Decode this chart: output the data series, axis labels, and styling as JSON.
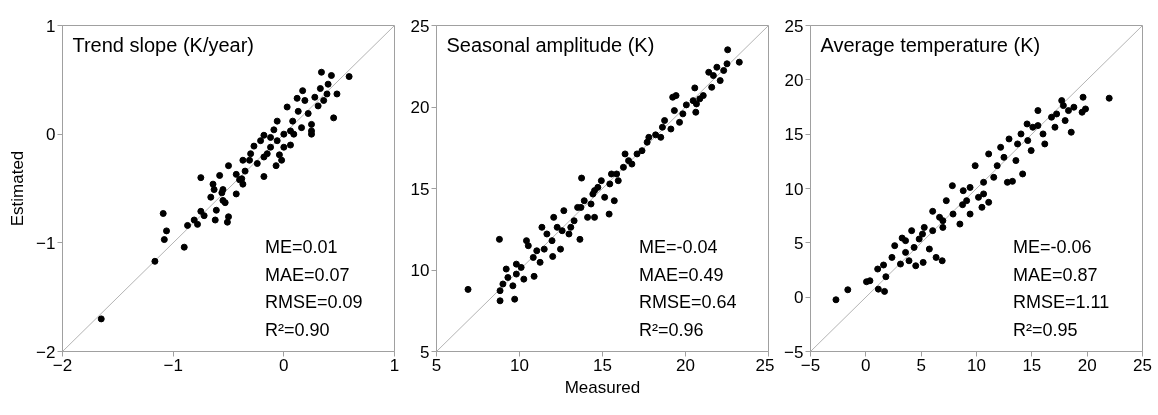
{
  "chart_data": [
    {
      "type": "scatter",
      "title": "Trend slope (K/year)",
      "ylabel": "Estimated",
      "grid": false,
      "xlim": [
        -2,
        1
      ],
      "ylim": [
        -2,
        1
      ],
      "xticks": [
        {
          "value": -2,
          "label": "−2"
        },
        {
          "value": -1,
          "label": "−1"
        },
        0,
        1
      ],
      "yticks": [
        {
          "value": -2,
          "label": "−2"
        },
        {
          "value": -1,
          "label": "−1"
        },
        0,
        1
      ],
      "annotations": [
        "ME=0.01",
        "MAE=0.07",
        "RMSE=0.09",
        "R²=0.90"
      ],
      "series": [
        {
          "marker": "circle",
          "color": "#000000",
          "x": [
            -1.65,
            -1.165,
            -1.08,
            -1.06,
            -1.09,
            -0.9,
            -0.87,
            -0.81,
            -0.78,
            -0.75,
            -0.75,
            -0.72,
            -0.66,
            -0.64,
            -0.63,
            -0.62,
            -0.61,
            -0.58,
            -0.56,
            -0.55,
            -0.55,
            -0.53,
            -0.51,
            -0.5,
            -0.5,
            -0.43,
            -0.4,
            -0.38,
            -0.37,
            -0.35,
            -0.31,
            -0.27,
            -0.24,
            -0.18,
            -0.18,
            -0.18,
            -0.12,
            -0.09,
            -0.07,
            -0.04,
            -0.02,
            0.0,
            0.03,
            0.06,
            0.06,
            0.09,
            0.12,
            0.16,
            0.19,
            0.22,
            0.25,
            0.25,
            0.25,
            0.28,
            0.33,
            0.34,
            0.36,
            0.39,
            0.43,
            0.45,
            0.48,
            0.59,
            -0.06,
            0.0,
            -0.21,
            -0.3,
            -0.12,
            0.13,
            -0.06,
            -0.15,
            0.08,
            -0.37,
            -0.43,
            0.17,
            0.31,
            0.4
          ],
          "values": [
            -1.7,
            -1.17,
            -0.97,
            -0.89,
            -0.73,
            -1.04,
            -0.84,
            -0.79,
            -0.83,
            -0.4,
            -0.71,
            -0.75,
            -0.58,
            -0.46,
            -0.51,
            -0.79,
            -0.7,
            -0.38,
            -0.54,
            -0.51,
            -0.61,
            -0.63,
            -0.81,
            -0.76,
            -0.29,
            -0.55,
            -0.42,
            -0.41,
            -0.24,
            -0.34,
            -0.24,
            -0.11,
            -0.27,
            -0.39,
            -0.21,
            -0.01,
            -0.12,
            0.04,
            -0.29,
            -0.19,
            -0.24,
            -0.12,
            0.25,
            -0.1,
            0.03,
            0.0,
            0.33,
            0.06,
            0.31,
            0.19,
            0.09,
            0.0,
            0.03,
            0.34,
            0.42,
            0.57,
            0.31,
            0.37,
            0.54,
            0.15,
            0.37,
            0.53,
            0.12,
            0.0,
            -0.06,
            -0.18,
            -0.03,
            0.21,
            -0.06,
            -0.18,
            0.12,
            -0.46,
            -0.37,
            0.4,
            0.26,
            0.46
          ]
        },
        {
          "type": "line",
          "color": "#b4b4b4",
          "x": [
            -2,
            1
          ],
          "values": [
            -2,
            1
          ]
        }
      ]
    },
    {
      "type": "scatter",
      "title": "Seasonal amplitude (K)",
      "xlabel": "Measured",
      "grid": false,
      "xlim": [
        5,
        25
      ],
      "ylim": [
        5,
        25
      ],
      "xticks": [
        5,
        10,
        15,
        20,
        25
      ],
      "yticks": [
        5,
        10,
        15,
        20,
        25
      ],
      "annotations": [
        "ME=-0.04",
        "MAE=0.49",
        "RMSE=0.64",
        "R²=0.96"
      ],
      "series": [
        {
          "marker": "circle",
          "color": "#000000",
          "x": [
            6.9,
            8.79,
            8.83,
            9.71,
            8.83,
            9.0,
            9.3,
            9.6,
            9.81,
            10.1,
            10.26,
            10.88,
            10.53,
            10.83,
            11.24,
            11.35,
            11.49,
            12.0,
            11.65,
            12.06,
            12.47,
            12.57,
            12.67,
            12.98,
            13.29,
            13.64,
            13.74,
            13.7,
            13.9,
            14.1,
            14.52,
            14.42,
            14.72,
            14.93,
            15.13,
            15.4,
            15.71,
            15.85,
            16.26,
            16.57,
            16.36,
            17.08,
            17.38,
            17.69,
            17.79,
            18.2,
            18.51,
            18.61,
            18.74,
            19.12,
            19.23,
            19.43,
            19.33,
            19.64,
            19.84,
            20.05,
            20.56,
            20.46,
            20.66,
            20.62,
            20.86,
            21.07,
            21.4,
            21.58,
            21.68,
            21.89,
            22.09,
            22.3,
            22.5,
            22.54,
            23.24,
            9.2,
            9.81,
            10.42,
            11.04,
            13.09,
            13.5,
            14.31,
            14.52,
            15.44,
            15.54,
            15.95,
            16.77,
            11.96,
            12.27
          ],
          "values": [
            8.81,
            11.88,
            8.11,
            8.21,
            8.73,
            9.14,
            9.54,
            9.03,
            10.36,
            10.16,
            9.44,
            9.61,
            11.49,
            10.77,
            10.47,
            12.62,
            11.28,
            10.83,
            12.21,
            13.23,
            11.28,
            12.41,
            13.64,
            12.21,
            13.02,
            11.88,
            15.64,
            13.84,
            14.25,
            13.23,
            13.23,
            14.66,
            15.07,
            15.48,
            14.46,
            13.43,
            14.25,
            15.89,
            16.3,
            16.71,
            17.12,
            17.12,
            17.32,
            17.84,
            18.14,
            18.29,
            18.14,
            18.76,
            19.17,
            18.65,
            20.6,
            20.7,
            19.78,
            19.06,
            19.58,
            20.13,
            21.17,
            20.39,
            20.19,
            19.68,
            20.5,
            20.7,
            22.13,
            21.21,
            21.93,
            22.44,
            21.62,
            22.24,
            22.65,
            23.51,
            22.75,
            10.06,
            9.75,
            11.8,
            11.18,
            12.62,
            13.84,
            14.05,
            14.87,
            15.28,
            15.89,
            15.48,
            16.5,
            11.8,
            12.62
          ]
        },
        {
          "type": "line",
          "color": "#b4b4b4",
          "x": [
            5,
            25
          ],
          "values": [
            5,
            25
          ]
        }
      ]
    },
    {
      "type": "scatter",
      "title": "Average temperature (K)",
      "grid": false,
      "xlim": [
        -5,
        25
      ],
      "ylim": [
        -5,
        25
      ],
      "xticks": [
        {
          "value": -5,
          "label": "−5"
        },
        0,
        5,
        10,
        15,
        20,
        25
      ],
      "yticks": [
        {
          "value": -5,
          "label": "−5"
        },
        0,
        5,
        10,
        15,
        20,
        25
      ],
      "annotations": [
        "ME=-0.06",
        "MAE=0.87",
        "RMSE=1.11",
        "R²=0.95"
      ],
      "series": [
        {
          "marker": "circle",
          "color": "#000000",
          "x": [
            -2.7,
            -1.63,
            0.06,
            0.37,
            1.13,
            1.69,
            1.07,
            1.6,
            1.81,
            2.36,
            2.61,
            3.13,
            3.28,
            3.59,
            3.9,
            4.14,
            4.36,
            4.51,
            4.82,
            5.18,
            5.28,
            5.74,
            6.04,
            6.04,
            6.35,
            6.9,
            6.66,
            6.96,
            7.27,
            7.82,
            7.88,
            8.5,
            8.74,
            9.11,
            9.42,
            9.88,
            9.42,
            10.18,
            10.49,
            10.64,
            11.1,
            11.1,
            11.56,
            11.87,
            12.18,
            12.79,
            13.25,
            12.94,
            13.56,
            13.71,
            14.17,
            14.02,
            14.57,
            14.94,
            15.09,
            15.55,
            16.17,
            16.01,
            16.78,
            17.09,
            17.7,
            18.01,
            18.31,
            18.56,
            18.8,
            19.54,
            19.63,
            19.85,
            21.99,
            17.85,
            17.24,
            14.63,
            10.64,
            8.8,
            6.96,
            5.12,
            3.59,
            12.48,
            15.55
          ],
          "values": [
            -0.24,
            0.68,
            1.42,
            1.51,
            0.74,
            0.53,
            2.59,
            2.96,
            1.88,
            3.66,
            4.74,
            3.05,
            5.44,
            4.12,
            3.35,
            6.12,
            4.58,
            2.89,
            5.35,
            3.2,
            6.42,
            4.43,
            6.12,
            7.9,
            3.66,
            3.35,
            7.35,
            6.42,
            8.88,
            10.26,
            7.65,
            6.73,
            8.51,
            8.88,
            7.65,
            12.1,
            10.1,
            9.19,
            8.27,
            10.57,
            8.73,
            13.18,
            11.03,
            12.1,
            13.79,
            10.57,
            10.66,
            14.56,
            12.57,
            14.1,
            11.34,
            15.02,
            15.94,
            13.49,
            15.64,
            17.17,
            14.1,
            15.02,
            16.56,
            15.64,
            18.09,
            16.25,
            17.17,
            15.18,
            17.48,
            17.02,
            18.4,
            17.32,
            18.31,
            17.63,
            16.86,
            14.41,
            9.5,
            9.8,
            7.04,
            5.81,
            5.2,
            12.87,
            15.79
          ]
        },
        {
          "type": "line",
          "color": "#b4b4b4",
          "x": [
            -5,
            25
          ],
          "values": [
            -5,
            25
          ]
        }
      ]
    }
  ]
}
